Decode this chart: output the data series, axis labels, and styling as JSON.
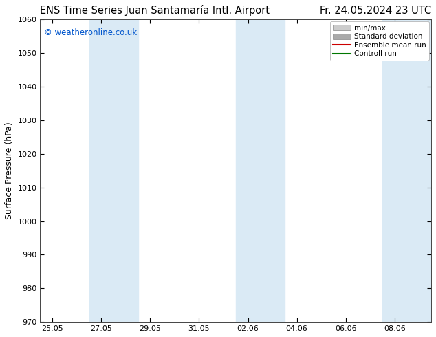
{
  "title_left": "ENS Time Series Juan Santamaría Intl. Airport",
  "title_right": "Fr. 24.05.2024 23 UTC",
  "ylabel": "Surface Pressure (hPa)",
  "ylim": [
    970,
    1060
  ],
  "yticks": [
    970,
    980,
    990,
    1000,
    1010,
    1020,
    1030,
    1040,
    1050,
    1060
  ],
  "xtick_labels": [
    "25.05",
    "27.05",
    "29.05",
    "31.05",
    "02.06",
    "04.06",
    "06.06",
    "08.06"
  ],
  "xtick_positions": [
    0,
    2,
    4,
    6,
    8,
    10,
    12,
    14
  ],
  "xlim_start": -0.5,
  "xlim_end": 15.5,
  "shaded_bands": [
    {
      "x_start": 1.5,
      "x_end": 3.5
    },
    {
      "x_start": 7.5,
      "x_end": 9.5
    },
    {
      "x_start": 13.5,
      "x_end": 15.5
    }
  ],
  "band_color": "#daeaf5",
  "background_color": "#ffffff",
  "watermark": "© weatheronline.co.uk",
  "watermark_color": "#0055cc",
  "legend_items": [
    {
      "label": "min/max",
      "color": "#cccccc",
      "type": "hbar"
    },
    {
      "label": "Standard deviation",
      "color": "#aaaaaa",
      "type": "hbar"
    },
    {
      "label": "Ensemble mean run",
      "color": "#cc0000",
      "type": "line"
    },
    {
      "label": "Controll run",
      "color": "#007700",
      "type": "line"
    }
  ],
  "title_fontsize": 10.5,
  "axis_label_fontsize": 9,
  "tick_fontsize": 8,
  "watermark_fontsize": 8.5,
  "fig_width": 6.34,
  "fig_height": 4.9,
  "dpi": 100
}
